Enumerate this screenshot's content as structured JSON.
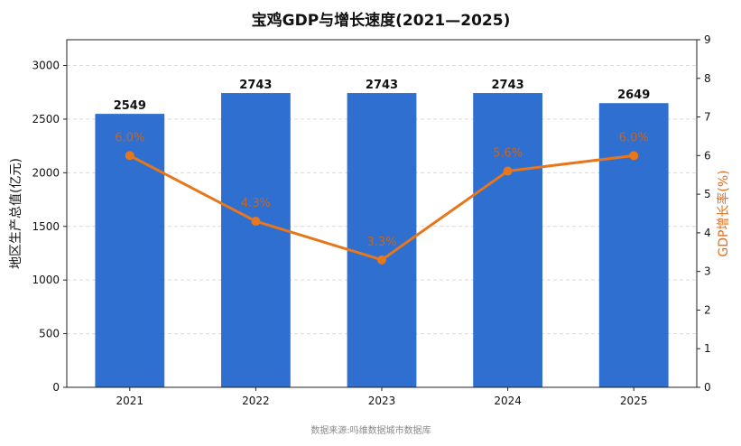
{
  "chart_data": {
    "type": "bar",
    "title": "宝鸡GDP与增长速度(2021—2025)",
    "categories": [
      "2021",
      "2022",
      "2023",
      "2024",
      "2025"
    ],
    "series": [
      {
        "type": "bar",
        "axis": "left",
        "color": "#2f6fd0",
        "values": [
          2549,
          2743,
          2743,
          2743,
          2649
        ],
        "labels": [
          "2549",
          "2743",
          "2743",
          "2743",
          "2649"
        ]
      },
      {
        "type": "line",
        "axis": "right",
        "color": "#e8761b",
        "values": [
          6.0,
          4.3,
          3.3,
          5.6,
          6.0
        ],
        "labels": [
          "6.0%",
          "4.3%",
          "3.3%",
          "5.6%",
          "6.0%"
        ]
      }
    ],
    "ylabel": "地区生产总值(亿元)",
    "y2label": "GDP增长率(%)",
    "ylim": [
      0,
      3240
    ],
    "y2lim": [
      0,
      9
    ],
    "yticks": [
      "0",
      "500",
      "1000",
      "1500",
      "2000",
      "2500",
      "3000"
    ],
    "y2ticks": [
      "0",
      "1",
      "2",
      "3",
      "4",
      "5",
      "6",
      "7",
      "8",
      "9"
    ],
    "grid": true
  },
  "source": "数据来源:吗维数据城市数据库"
}
